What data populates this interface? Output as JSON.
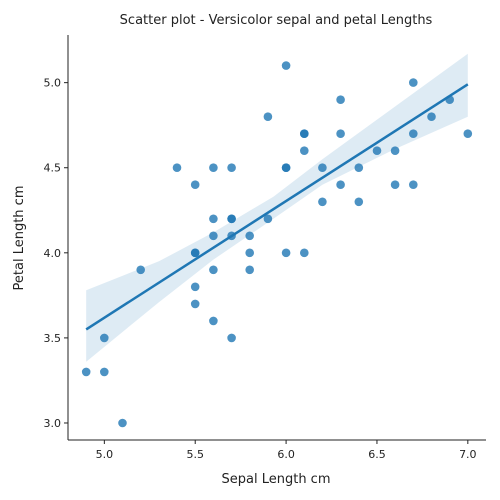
{
  "chart_data": {
    "type": "scatter",
    "title": "Scatter plot - Versicolor sepal and petal Lengths",
    "xlabel": "Sepal Length cm",
    "ylabel": "Petal Length cm",
    "xlim": [
      4.8,
      7.1
    ],
    "ylim": [
      2.9,
      5.28
    ],
    "x_ticks": [
      "5.0",
      "5.5",
      "6.0",
      "6.5",
      "7.0"
    ],
    "y_ticks": [
      "3.0",
      "3.5",
      "4.0",
      "4.5",
      "5.0"
    ],
    "x_tick_values": [
      5.0,
      5.5,
      6.0,
      6.5,
      7.0
    ],
    "y_tick_values": [
      3.0,
      3.5,
      4.0,
      4.5,
      5.0
    ],
    "grid": false,
    "point_color": "#1f77b4",
    "line_color": "#1f77b4",
    "band_color": "#1f77b4",
    "points": [
      {
        "x": 7.0,
        "y": 4.7
      },
      {
        "x": 6.4,
        "y": 4.5
      },
      {
        "x": 6.9,
        "y": 4.9
      },
      {
        "x": 5.5,
        "y": 4.0
      },
      {
        "x": 6.5,
        "y": 4.6
      },
      {
        "x": 5.7,
        "y": 4.5
      },
      {
        "x": 6.3,
        "y": 4.7
      },
      {
        "x": 4.9,
        "y": 3.3
      },
      {
        "x": 6.6,
        "y": 4.6
      },
      {
        "x": 5.2,
        "y": 3.9
      },
      {
        "x": 5.0,
        "y": 3.5
      },
      {
        "x": 5.9,
        "y": 4.2
      },
      {
        "x": 6.0,
        "y": 4.0
      },
      {
        "x": 6.1,
        "y": 4.7
      },
      {
        "x": 5.6,
        "y": 3.6
      },
      {
        "x": 6.7,
        "y": 4.4
      },
      {
        "x": 5.6,
        "y": 4.5
      },
      {
        "x": 5.8,
        "y": 4.1
      },
      {
        "x": 6.2,
        "y": 4.5
      },
      {
        "x": 5.6,
        "y": 3.9
      },
      {
        "x": 5.9,
        "y": 4.8
      },
      {
        "x": 6.1,
        "y": 4.0
      },
      {
        "x": 6.3,
        "y": 4.9
      },
      {
        "x": 6.1,
        "y": 4.7
      },
      {
        "x": 6.4,
        "y": 4.3
      },
      {
        "x": 6.6,
        "y": 4.4
      },
      {
        "x": 6.8,
        "y": 4.8
      },
      {
        "x": 6.7,
        "y": 5.0
      },
      {
        "x": 6.0,
        "y": 4.5
      },
      {
        "x": 5.7,
        "y": 3.5
      },
      {
        "x": 5.5,
        "y": 3.8
      },
      {
        "x": 5.5,
        "y": 3.7
      },
      {
        "x": 5.8,
        "y": 3.9
      },
      {
        "x": 6.0,
        "y": 5.1
      },
      {
        "x": 5.4,
        "y": 4.5
      },
      {
        "x": 6.0,
        "y": 4.5
      },
      {
        "x": 6.7,
        "y": 4.7
      },
      {
        "x": 6.3,
        "y": 4.4
      },
      {
        "x": 5.6,
        "y": 4.1
      },
      {
        "x": 5.5,
        "y": 4.0
      },
      {
        "x": 5.5,
        "y": 4.4
      },
      {
        "x": 6.1,
        "y": 4.6
      },
      {
        "x": 5.8,
        "y": 4.0
      },
      {
        "x": 5.0,
        "y": 3.3
      },
      {
        "x": 5.6,
        "y": 4.2
      },
      {
        "x": 5.7,
        "y": 4.2
      },
      {
        "x": 5.7,
        "y": 4.2
      },
      {
        "x": 6.2,
        "y": 4.3
      },
      {
        "x": 5.1,
        "y": 3.0
      },
      {
        "x": 5.7,
        "y": 4.1
      }
    ],
    "regression_line": [
      {
        "x": 4.9,
        "y": 3.55
      },
      {
        "x": 7.0,
        "y": 4.99
      }
    ],
    "confidence_band": {
      "upper": [
        {
          "x": 4.9,
          "y": 3.78
        },
        {
          "x": 5.3,
          "y": 3.95
        },
        {
          "x": 5.6,
          "y": 4.12
        },
        {
          "x": 5.93,
          "y": 4.33
        },
        {
          "x": 6.2,
          "y": 4.55
        },
        {
          "x": 6.6,
          "y": 4.86
        },
        {
          "x": 7.0,
          "y": 5.17
        }
      ],
      "lower": [
        {
          "x": 7.0,
          "y": 4.8
        },
        {
          "x": 6.6,
          "y": 4.61
        },
        {
          "x": 6.2,
          "y": 4.4
        },
        {
          "x": 5.93,
          "y": 4.2
        },
        {
          "x": 5.6,
          "y": 3.96
        },
        {
          "x": 5.3,
          "y": 3.71
        },
        {
          "x": 4.9,
          "y": 3.36
        }
      ]
    }
  }
}
